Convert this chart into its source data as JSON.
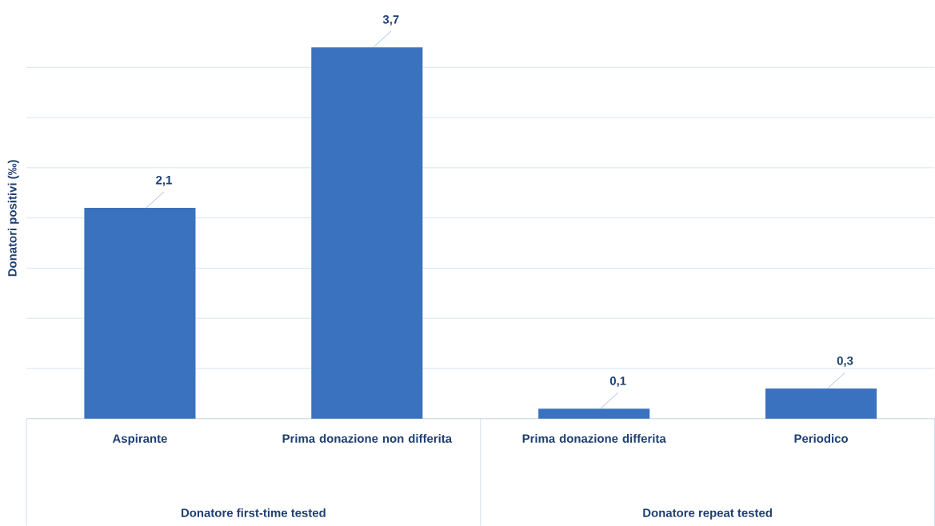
{
  "chart_data": {
    "type": "bar",
    "ylabel": "Donatori positivi (‰)",
    "categories": [
      "Aspirante",
      "Prima donazione non differita",
      "Prima donazione differita",
      "Periodico"
    ],
    "values": [
      2.1,
      3.7,
      0.1,
      0.3
    ],
    "value_labels": [
      "2,1",
      "3,7",
      "0,1",
      "0,3"
    ],
    "color": "#3a72bf",
    "annotations": [
      "Donatore first-time tested",
      "Donatore repeat tested"
    ],
    "grid": "y",
    "tick_labels": "x"
  }
}
